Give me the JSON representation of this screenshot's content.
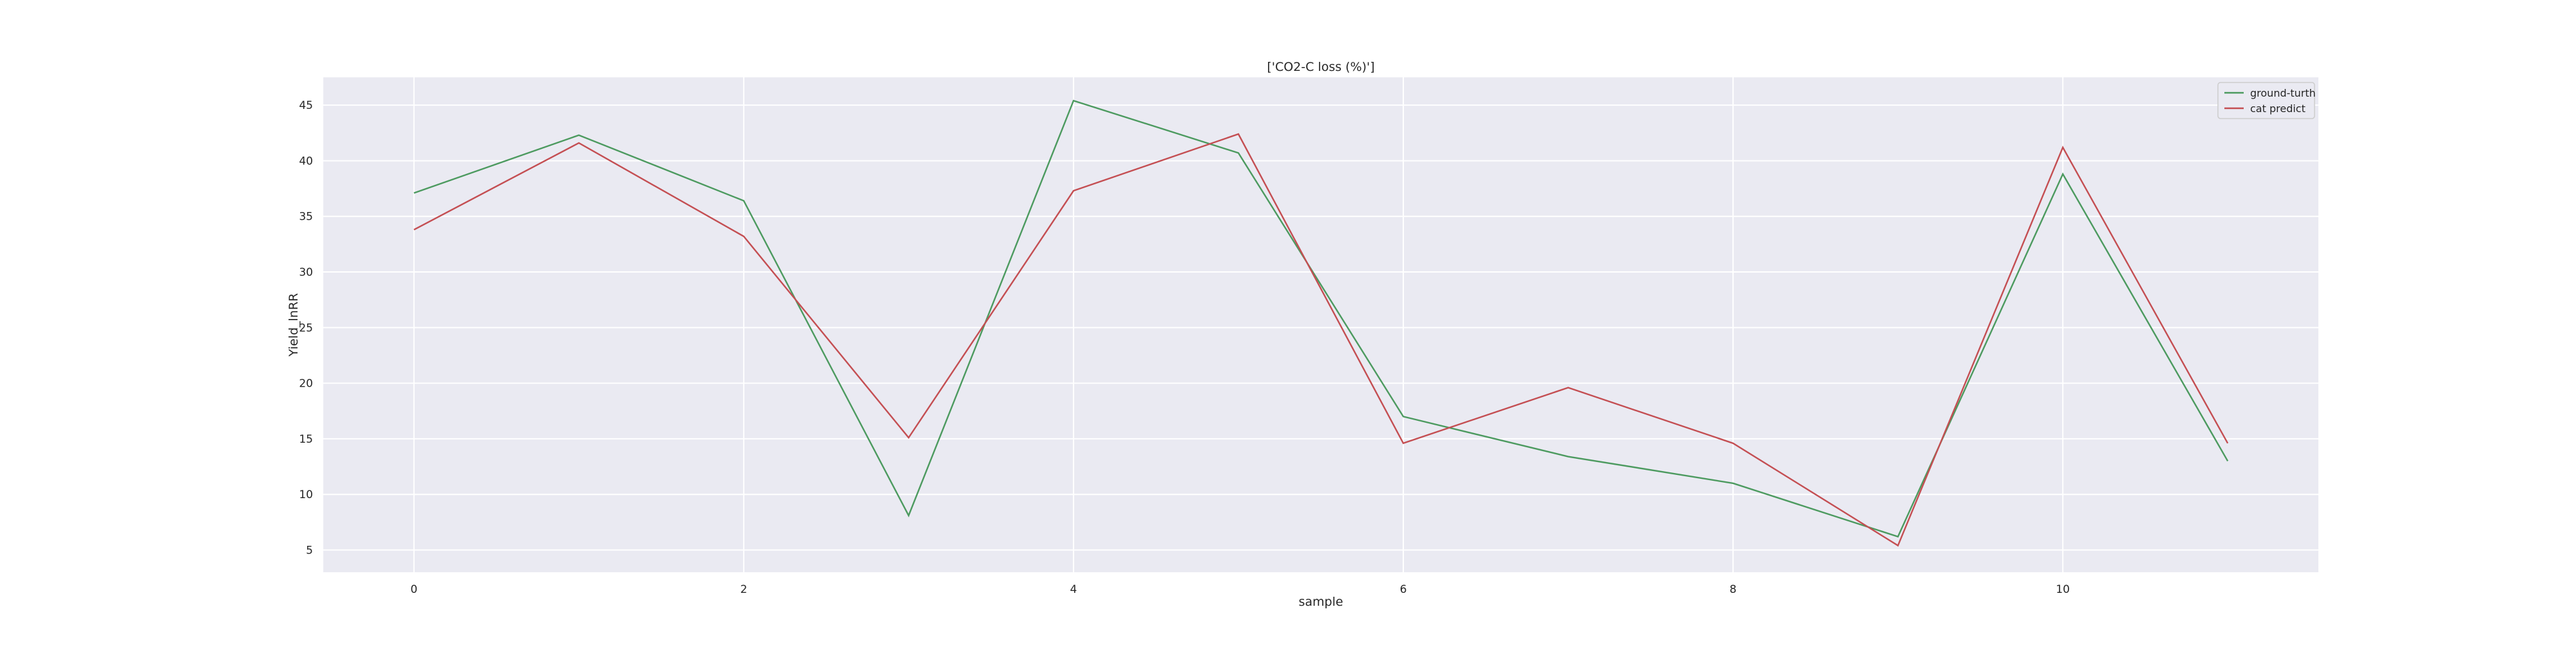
{
  "chart_data": {
    "type": "line",
    "title": "['CO2-C loss (%)']",
    "xlabel": "sample",
    "ylabel": "Yield_lnRR",
    "x": [
      0,
      1,
      2,
      3,
      4,
      5,
      6,
      7,
      8,
      9,
      10,
      11
    ],
    "xlim": [
      -0.55,
      11.55
    ],
    "ylim": [
      3.0,
      47.5
    ],
    "xticks": [
      0,
      2,
      4,
      6,
      8,
      10
    ],
    "yticks": [
      5,
      10,
      15,
      20,
      25,
      30,
      35,
      40,
      45
    ],
    "grid": true,
    "background": "#eaeaf2",
    "legend_position": "upper right",
    "series": [
      {
        "name": "ground-turth",
        "color": "#4c9a5f",
        "values": [
          37.1,
          42.3,
          36.4,
          8.1,
          45.4,
          40.7,
          17.0,
          13.4,
          11.0,
          6.2,
          38.8,
          13.0
        ]
      },
      {
        "name": "cat predict",
        "color": "#c44e52",
        "values": [
          33.8,
          41.6,
          33.2,
          15.1,
          37.3,
          42.4,
          14.6,
          19.6,
          14.6,
          5.4,
          41.2,
          14.6
        ]
      }
    ]
  }
}
